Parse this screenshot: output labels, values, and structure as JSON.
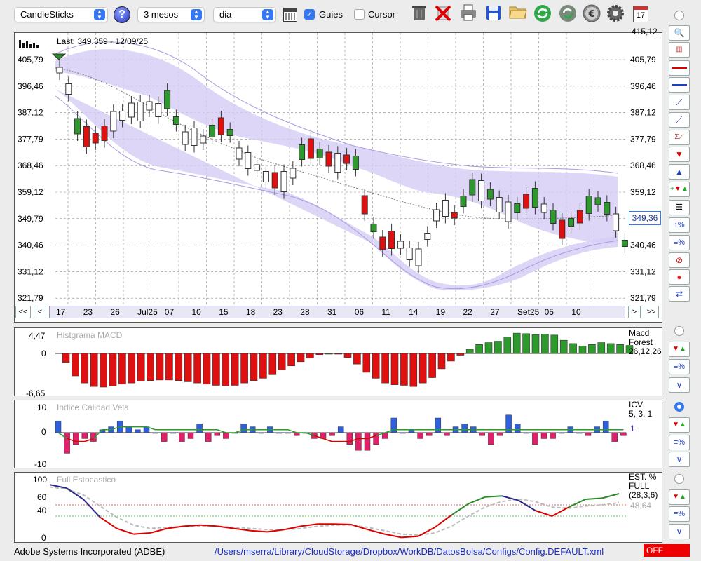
{
  "toolbar": {
    "chart_type": "CandleSticks",
    "period": "3 mesos",
    "interval": "dia",
    "guides_label": "Guies",
    "guides_checked": true,
    "cursor_label": "Cursor",
    "cursor_checked": false,
    "icons": [
      "calendar-grid-icon",
      "trash-icon",
      "delete-x-icon",
      "print-icon",
      "save-icon",
      "open-folder-icon",
      "refresh-icon",
      "sync-icon",
      "euro-icon",
      "settings-gear-icon",
      "calendar-17-icon"
    ],
    "calendar_day": "17"
  },
  "main_chart": {
    "last_info": "Last: 349.359 - 12/09/25",
    "y_ticks": [
      "405,79",
      "396,46",
      "387,12",
      "377,79",
      "368,46",
      "359,12",
      "349,79",
      "340,46",
      "331,12",
      "321,79"
    ],
    "y_top_partial": "415,12",
    "current_price": "349,36",
    "x_labels": [
      "17",
      "23",
      "26",
      "Jul25",
      "07",
      "10",
      "15",
      "18",
      "23",
      "28",
      "31",
      "06",
      "11",
      "14",
      "19",
      "22",
      "27",
      "Set25",
      "05",
      "10"
    ],
    "nav_left": [
      "<<",
      "<"
    ],
    "nav_right": [
      ">",
      ">>"
    ]
  },
  "macd_panel": {
    "title": "Histgrama MACD",
    "y_ticks": [
      "4,47",
      "0",
      "-6,65"
    ],
    "legend": [
      "Macd",
      "Forest",
      "26,12,26"
    ]
  },
  "icv_panel": {
    "title": "Indice Calidad Vela",
    "y_ticks": [
      "10",
      "0",
      "-10"
    ],
    "legend": [
      "ICV",
      "5, 3, 1"
    ],
    "value": "1"
  },
  "stoch_panel": {
    "title": "Full Estocastico",
    "y_ticks": [
      "100",
      "60",
      "40",
      "0"
    ],
    "legend": [
      "EST. %",
      "FULL",
      "(28,3,6)"
    ],
    "value": "48,64"
  },
  "status": {
    "company": "Adobe Systems Incorporated (ADBE)",
    "path": "/Users/mserra/Library/CloudStorage/Dropbox/WorkDB/DatosBolsa/Configs/Config.DEFAULT.xml",
    "state": "OFF"
  },
  "chart_data": [
    {
      "type": "candlestick",
      "title": "Last: 349.359 - 12/09/25",
      "ylim": [
        321.79,
        415.12
      ],
      "x": [
        "17",
        "23",
        "26",
        "Jul25",
        "07",
        "10",
        "15",
        "18",
        "23",
        "28",
        "31",
        "06",
        "11",
        "14",
        "19",
        "22",
        "27",
        "Set25",
        "05",
        "10"
      ],
      "last": 349.36
    },
    {
      "type": "bar",
      "title": "Histgrama MACD",
      "ylim": [
        -6.65,
        4.47
      ],
      "values": [
        -1.5,
        -3.8,
        -5.0,
        -5.6,
        -5.7,
        -5.5,
        -5.2,
        -5.0,
        -4.7,
        -4.6,
        -4.5,
        -4.5,
        -4.6,
        -4.8,
        -5.0,
        -5.2,
        -5.4,
        -5.5,
        -5.4,
        -5.0,
        -4.6,
        -4.2,
        -3.6,
        -2.8,
        -2.1,
        -1.4,
        -0.8,
        -0.2,
        0,
        -0.1,
        -0.7,
        -1.8,
        -3.2,
        -4.2,
        -5.0,
        -5.3,
        -5.4,
        -5.6,
        -5.0,
        -4.1,
        -2.6,
        -1.3,
        -0.3,
        0.9,
        1.9,
        2.3,
        2.6,
        3.5,
        4.3,
        4.2,
        4.0,
        4.1,
        3.9,
        2.8,
        2.1,
        1.6,
        1.9,
        2.3,
        2.1,
        1.9,
        1.7
      ]
    },
    {
      "type": "bar",
      "title": "Indice Calidad Vela",
      "ylim": [
        -10,
        10
      ],
      "values": [
        4,
        -7,
        -4,
        -2,
        -3,
        1,
        2,
        4,
        2,
        1,
        2,
        0,
        -3,
        0,
        -3,
        -2,
        3,
        -3,
        -1,
        -2,
        0,
        3,
        2,
        0,
        2,
        0,
        0,
        -1,
        0,
        -2,
        -2,
        -1,
        2,
        -4,
        -6,
        -6,
        -4,
        -2,
        5,
        0,
        1,
        -2,
        -1,
        5,
        -1,
        2,
        3,
        2,
        -1,
        -4,
        -1,
        6,
        3,
        0,
        -4,
        -2,
        -2,
        0,
        2,
        0,
        -1,
        2,
        4,
        -3,
        -1
      ],
      "series": [
        {
          "name": "ICV",
          "values": [
            0,
            -2,
            -3,
            -3,
            -2,
            1,
            1,
            2,
            2,
            2,
            2,
            1,
            1,
            1,
            1,
            1,
            1,
            1,
            1,
            0,
            0,
            1,
            1,
            1,
            1,
            1,
            1,
            0,
            0,
            -1,
            -2,
            -3,
            -3,
            -3,
            -2,
            -2,
            -1,
            0,
            1,
            1,
            1,
            1,
            1,
            1,
            1,
            1,
            1,
            1,
            1,
            1,
            1,
            1,
            1,
            1,
            1,
            1,
            1,
            1,
            1,
            1,
            1,
            1,
            1,
            1,
            1
          ]
        }
      ]
    },
    {
      "type": "line",
      "title": "Full Estocastico",
      "ylim": [
        0,
        100
      ],
      "series": [
        {
          "name": "EST. %",
          "values": [
            96,
            90,
            70,
            38,
            18,
            8,
            10,
            18,
            22,
            24,
            22,
            18,
            14,
            12,
            16,
            22,
            26,
            26,
            25,
            16,
            8,
            2,
            4,
            20,
            42,
            62,
            74,
            76,
            68,
            50,
            40,
            56,
            70,
            72,
            80
          ]
        },
        {
          "name": "FULL",
          "values": [
            92,
            88,
            78,
            58,
            38,
            24,
            18,
            20,
            22,
            22,
            22,
            20,
            18,
            16,
            16,
            18,
            22,
            24,
            24,
            20,
            14,
            8,
            6,
            10,
            22,
            40,
            56,
            66,
            70,
            66,
            56,
            54,
            58,
            60,
            64
          ]
        }
      ],
      "value": 48.64
    }
  ]
}
